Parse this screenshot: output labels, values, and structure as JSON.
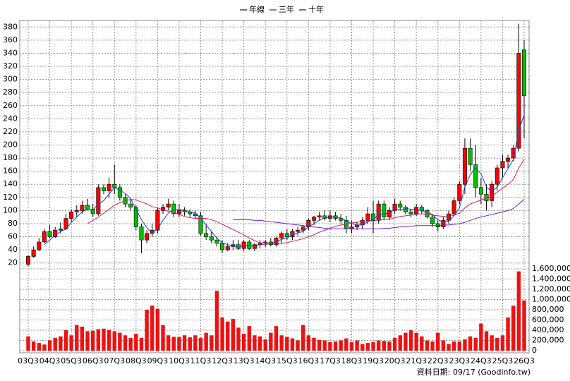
{
  "chart_data": [
    {
      "type": "candlestick",
      "legend": "top",
      "up_color": "#ff0000",
      "down_color": "#00c000",
      "ylim": [
        10,
        390
      ],
      "yticks": [
        20,
        40,
        60,
        80,
        100,
        120,
        140,
        160,
        180,
        200,
        220,
        240,
        260,
        280,
        300,
        320,
        340,
        360,
        380
      ],
      "grid": true,
      "open": [
        18,
        30,
        40,
        52,
        68,
        60,
        70,
        72,
        88,
        98,
        100,
        108,
        102,
        95,
        135,
        130,
        140,
        135,
        120,
        110,
        105,
        75,
        55,
        65,
        70,
        100,
        105,
        110,
        95,
        100,
        98,
        95,
        92,
        65,
        60,
        55,
        50,
        40,
        45,
        48,
        42,
        52,
        42,
        48,
        50,
        52,
        48,
        58,
        65,
        60,
        68,
        70,
        75,
        85,
        90,
        92,
        88,
        92,
        88,
        85,
        72,
        75,
        78,
        85,
        95,
        85,
        110,
        90,
        100,
        110,
        105,
        98,
        95,
        105,
        100,
        90,
        80,
        75,
        85,
        95,
        115,
        140,
        195,
        170,
        135,
        125,
        115,
        140,
        165,
        175,
        180,
        195,
        345
      ],
      "high": [
        32,
        45,
        58,
        72,
        78,
        75,
        82,
        95,
        102,
        108,
        115,
        118,
        110,
        140,
        140,
        150,
        170,
        140,
        125,
        118,
        108,
        80,
        70,
        80,
        105,
        110,
        118,
        115,
        110,
        105,
        102,
        100,
        98,
        80,
        68,
        60,
        55,
        50,
        55,
        55,
        55,
        55,
        50,
        55,
        55,
        58,
        60,
        68,
        72,
        72,
        75,
        78,
        88,
        92,
        98,
        100,
        100,
        98,
        95,
        92,
        85,
        82,
        90,
        105,
        115,
        115,
        115,
        105,
        118,
        115,
        108,
        102,
        110,
        108,
        102,
        95,
        85,
        90,
        100,
        120,
        145,
        210,
        210,
        200,
        150,
        140,
        145,
        170,
        185,
        185,
        200,
        385,
        360
      ],
      "low": [
        15,
        28,
        38,
        50,
        58,
        58,
        65,
        70,
        82,
        90,
        95,
        100,
        90,
        92,
        125,
        120,
        125,
        115,
        105,
        100,
        70,
        35,
        50,
        60,
        65,
        95,
        100,
        90,
        90,
        92,
        90,
        88,
        62,
        55,
        50,
        45,
        35,
        38,
        40,
        40,
        38,
        40,
        38,
        42,
        45,
        45,
        45,
        50,
        55,
        55,
        62,
        65,
        70,
        78,
        85,
        85,
        82,
        85,
        80,
        65,
        65,
        70,
        72,
        80,
        65,
        80,
        85,
        85,
        95,
        100,
        95,
        90,
        92,
        95,
        88,
        75,
        68,
        72,
        80,
        92,
        110,
        125,
        160,
        120,
        110,
        100,
        105,
        130,
        150,
        165,
        175,
        190,
        210
      ],
      "close": [
        30,
        40,
        52,
        68,
        60,
        70,
        72,
        88,
        98,
        100,
        108,
        102,
        95,
        135,
        130,
        140,
        135,
        120,
        110,
        105,
        75,
        55,
        65,
        70,
        100,
        105,
        110,
        95,
        100,
        98,
        95,
        92,
        65,
        60,
        55,
        50,
        40,
        45,
        48,
        42,
        52,
        42,
        48,
        50,
        52,
        48,
        58,
        65,
        60,
        68,
        70,
        75,
        85,
        90,
        92,
        88,
        92,
        88,
        85,
        72,
        75,
        78,
        85,
        95,
        85,
        110,
        90,
        100,
        110,
        105,
        98,
        95,
        105,
        100,
        90,
        80,
        75,
        85,
        95,
        115,
        140,
        195,
        170,
        135,
        125,
        115,
        140,
        165,
        175,
        180,
        195,
        340,
        275
      ],
      "series": [
        {
          "name": "年線",
          "color": "#1f3fd0",
          "values": [
            null,
            null,
            null,
            48,
            55,
            62,
            68,
            72,
            82,
            90,
            98,
            102,
            101,
            110,
            115,
            125,
            135,
            131,
            126,
            118,
            102,
            86,
            74,
            66,
            72,
            85,
            96,
            102,
            102,
            101,
            98,
            96,
            88,
            78,
            68,
            58,
            51,
            48,
            46,
            44,
            47,
            47,
            46,
            48,
            48,
            50,
            52,
            56,
            58,
            63,
            66,
            68,
            75,
            80,
            85,
            89,
            90,
            90,
            89,
            84,
            80,
            78,
            78,
            83,
            86,
            94,
            95,
            96,
            102,
            101,
            103,
            102,
            101,
            100,
            97,
            94,
            86,
            82,
            84,
            92,
            104,
            136,
            155,
            165,
            156,
            136,
            129,
            136,
            150,
            164,
            178,
            222,
            246
          ]
        },
        {
          "name": "三年",
          "color": "#d0205a",
          "values": [
            null,
            null,
            null,
            null,
            null,
            null,
            null,
            null,
            null,
            null,
            null,
            80,
            85,
            90,
            96,
            102,
            108,
            112,
            115,
            117,
            116,
            113,
            110,
            106,
            104,
            101,
            99,
            97,
            94,
            91,
            89,
            88,
            88,
            88,
            86,
            83,
            79,
            75,
            71,
            67,
            63,
            58,
            54,
            51,
            50,
            49,
            49,
            50,
            51,
            53,
            55,
            57,
            60,
            63,
            67,
            70,
            73,
            76,
            78,
            79,
            81,
            82,
            83,
            84,
            84,
            86,
            86,
            87,
            89,
            91,
            92,
            93,
            94,
            95,
            94,
            93,
            92,
            91,
            91,
            93,
            96,
            104,
            110,
            113,
            116,
            119,
            122,
            128,
            134,
            140,
            147,
            165,
            178
          ]
        },
        {
          "name": "十年",
          "color": "#6a1fd0",
          "values": [
            null,
            null,
            null,
            null,
            null,
            null,
            null,
            null,
            null,
            null,
            null,
            null,
            null,
            null,
            null,
            null,
            null,
            null,
            null,
            null,
            null,
            null,
            null,
            null,
            null,
            null,
            null,
            null,
            null,
            null,
            null,
            null,
            null,
            null,
            null,
            null,
            null,
            null,
            86,
            86,
            86,
            86,
            85,
            85,
            84,
            83,
            82,
            81,
            80,
            79,
            78,
            77,
            76,
            75,
            74,
            73,
            72,
            72,
            72,
            72,
            72,
            72,
            72,
            72,
            72,
            72,
            73,
            73,
            74,
            75,
            75,
            76,
            77,
            77,
            77,
            77,
            77,
            78,
            78,
            79,
            80,
            82,
            85,
            88,
            90,
            92,
            94,
            96,
            98,
            100,
            103,
            110,
            117
          ]
        }
      ]
    },
    {
      "type": "bar",
      "color": "#ee1111",
      "categories": [
        "03Q3",
        null,
        null,
        null,
        "04Q3",
        null,
        null,
        null,
        "05Q3",
        null,
        null,
        null,
        "06Q3",
        null,
        null,
        null,
        "07Q3",
        null,
        null,
        null,
        "08Q3",
        null,
        null,
        null,
        "09Q3",
        null,
        null,
        null,
        "10Q3",
        null,
        null,
        null,
        "11Q3",
        null,
        null,
        null,
        "12Q3",
        null,
        null,
        null,
        "13Q3",
        null,
        null,
        null,
        "14Q3",
        null,
        null,
        null,
        "15Q3",
        null,
        null,
        null,
        "16Q3",
        null,
        null,
        null,
        "17Q3",
        null,
        null,
        null,
        "18Q3",
        null,
        null,
        null,
        "19Q3",
        null,
        null,
        null,
        "20Q3",
        null,
        null,
        null,
        "21Q3",
        null,
        null,
        null,
        "22Q3",
        null,
        null,
        null,
        "23Q3",
        null,
        null,
        null,
        "24Q3",
        null,
        null,
        null,
        "25Q3",
        null,
        null,
        null,
        "26Q3"
      ],
      "values": [
        280000,
        180000,
        150000,
        120000,
        200000,
        250000,
        280000,
        400000,
        300000,
        500000,
        470000,
        380000,
        390000,
        420000,
        430000,
        400000,
        380000,
        350000,
        300000,
        250000,
        330000,
        250000,
        800000,
        880000,
        820000,
        500000,
        300000,
        270000,
        270000,
        300000,
        260000,
        300000,
        250000,
        350000,
        300000,
        1170000,
        650000,
        570000,
        620000,
        450000,
        330000,
        480000,
        300000,
        280000,
        220000,
        350000,
        480000,
        300000,
        270000,
        240000,
        200000,
        500000,
        300000,
        250000,
        210000,
        200000,
        170000,
        180000,
        200000,
        240000,
        170000,
        200000,
        130000,
        150000,
        170000,
        200000,
        190000,
        180000,
        250000,
        300000,
        350000,
        400000,
        350000,
        280000,
        200000,
        180000,
        350000,
        200000,
        130000,
        180000,
        180000,
        220000,
        280000,
        250000,
        530000,
        380000,
        300000,
        250000,
        300000,
        650000,
        880000,
        1550000,
        980000
      ],
      "ylim": [
        0,
        1600000
      ],
      "yticks": [
        0,
        {
          "value": 200000,
          "label": "200,000"
        },
        {
          "value": 400000,
          "label": "400,000"
        },
        {
          "value": 600000,
          "label": "600,000"
        },
        {
          "value": 800000,
          "label": "800,000"
        },
        {
          "value": 1000000,
          "label": "1,000,000"
        },
        {
          "value": 1200000,
          "label": "1,200,000"
        },
        {
          "value": 1400000,
          "label": "1,400,000"
        },
        {
          "value": 1600000,
          "label": "1,600,000"
        }
      ],
      "grid": true,
      "footnote": "資料日期: 09/17  (Goodinfo.tw)"
    }
  ]
}
